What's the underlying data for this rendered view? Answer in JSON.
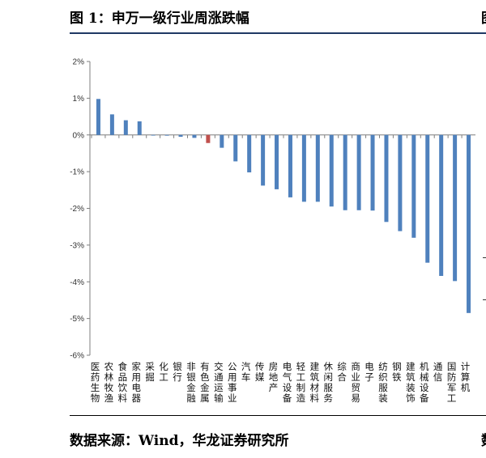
{
  "header": {
    "title": "图 1：申万一级行业周涨跌幅",
    "right_fragment_top": "图"
  },
  "footer": {
    "source": "数据来源：Wind，华龙证券研究所",
    "right_fragment_bottom": "数"
  },
  "colors": {
    "bar": "#4f81bd",
    "highlight": "#c0504d",
    "axis": "#7f7f7f"
  },
  "chart_data": {
    "type": "bar",
    "title": "申万一级行业周涨跌幅",
    "y_unit": "%",
    "ylim": [
      -6,
      2
    ],
    "yticks": [
      2,
      1,
      0,
      -1,
      -2,
      -3,
      -4,
      -5,
      -6
    ],
    "ytick_labels": [
      "2%",
      "1%",
      "0%",
      "-1%",
      "-2%",
      "-3%",
      "-4%",
      "-5%",
      "-6%"
    ],
    "highlight_category": "有色金属",
    "categories": [
      "医药生物",
      "农林牧渔",
      "食品饮料",
      "家用电器",
      "采掘",
      "化工",
      "银行",
      "非银金融",
      "有色金属",
      "交通运输",
      "公用事业",
      "汽车",
      "传媒",
      "房地产",
      "电气设备",
      "轻工制造",
      "建筑材料",
      "休闲服务",
      "综合",
      "商业贸易",
      "电子",
      "纺织服装",
      "钢铁",
      "建筑装饰",
      "机械设备",
      "通信",
      "国防军工",
      "计算机"
    ],
    "values": [
      0.98,
      0.56,
      0.4,
      0.37,
      0.0,
      -0.02,
      -0.05,
      -0.08,
      -0.22,
      -0.35,
      -0.72,
      -1.02,
      -1.38,
      -1.48,
      -1.7,
      -1.82,
      -1.82,
      -1.95,
      -2.05,
      -2.05,
      -2.06,
      -2.37,
      -2.62,
      -2.8,
      -3.48,
      -3.84,
      -3.98,
      -4.85
    ]
  }
}
